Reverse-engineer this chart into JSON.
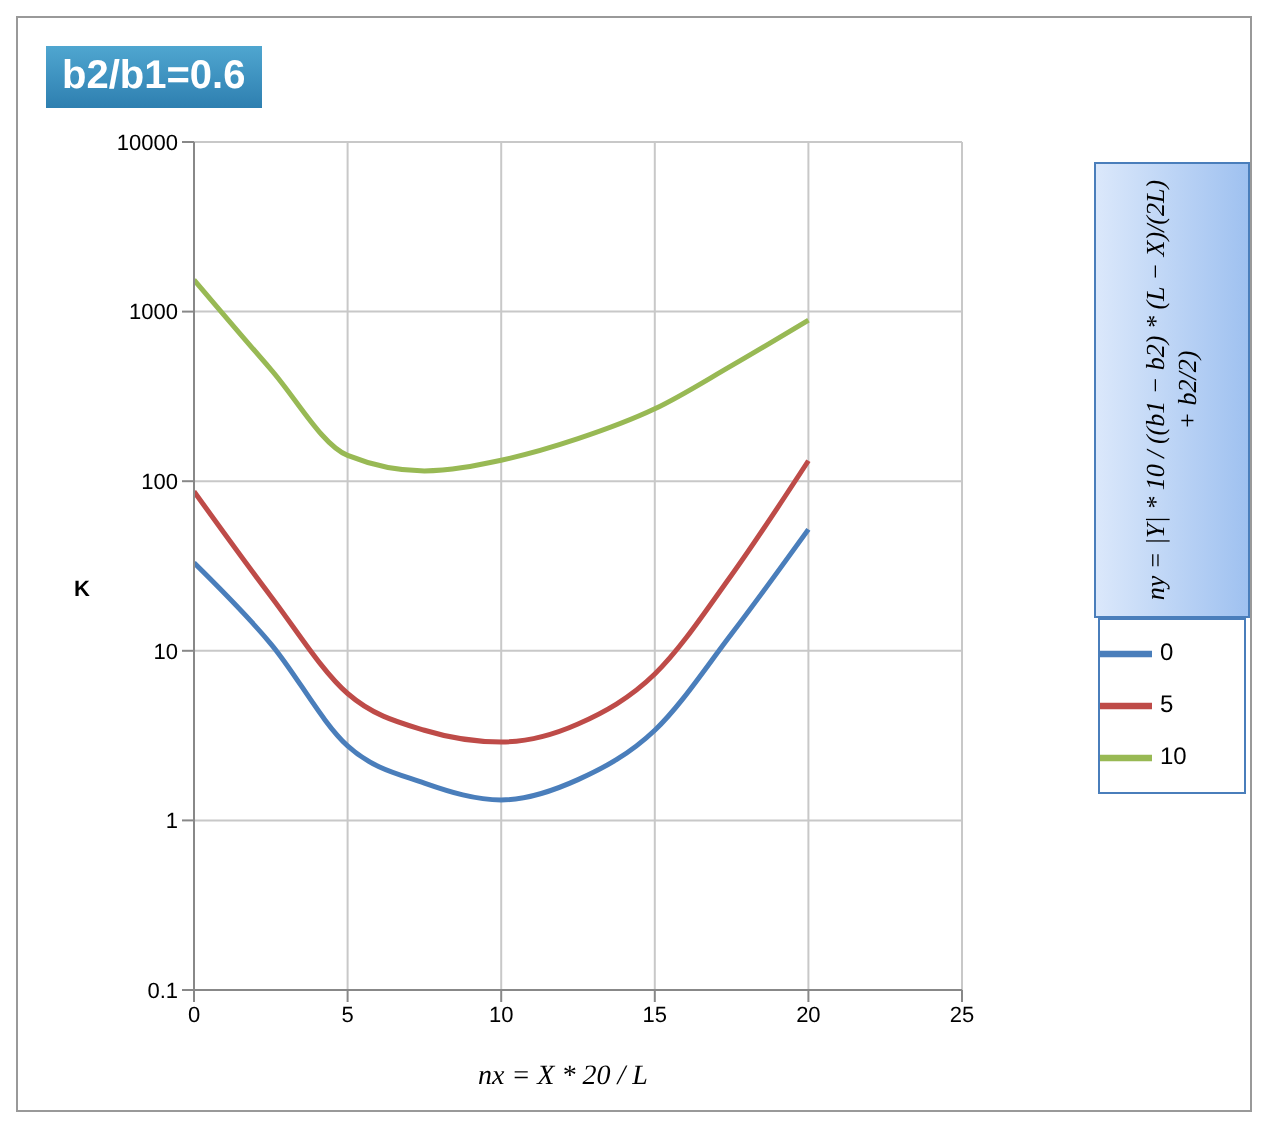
{
  "chart_data": {
    "type": "line",
    "title": "b2/b1=0.6",
    "xlabel": "nx = X * 20 / L",
    "ylabel": "K",
    "annotations": [
      "ny = |Y| * 10 / ((b1 − b2) * (L − X)/(2L) + b2/2)"
    ],
    "x": [
      0,
      2.5,
      5,
      7.5,
      10,
      12.5,
      15,
      17.5,
      20
    ],
    "series": [
      {
        "name": "0",
        "color": "#4a7ebb",
        "values": [
          33,
          11,
          2.75,
          1.66,
          1.32,
          1.74,
          3.4,
          12.6,
          52
        ]
      },
      {
        "name": "5",
        "color": "#be4b48",
        "values": [
          87,
          21,
          5.6,
          3.4,
          2.9,
          3.7,
          7.3,
          28,
          132
        ]
      },
      {
        "name": "10",
        "color": "#98b954",
        "values": [
          1540,
          457,
          142,
          115,
          133,
          178,
          267,
          480,
          890
        ]
      }
    ],
    "xlim": [
      0,
      25
    ],
    "xticks": [
      0,
      5,
      10,
      15,
      20,
      25
    ],
    "ylim": [
      0.1,
      10000
    ],
    "yticks": [
      0.1,
      1,
      10,
      100,
      1000,
      10000
    ],
    "log": true,
    "grid": true,
    "legend": "right",
    "marker": "none",
    "line_style": "solid"
  }
}
